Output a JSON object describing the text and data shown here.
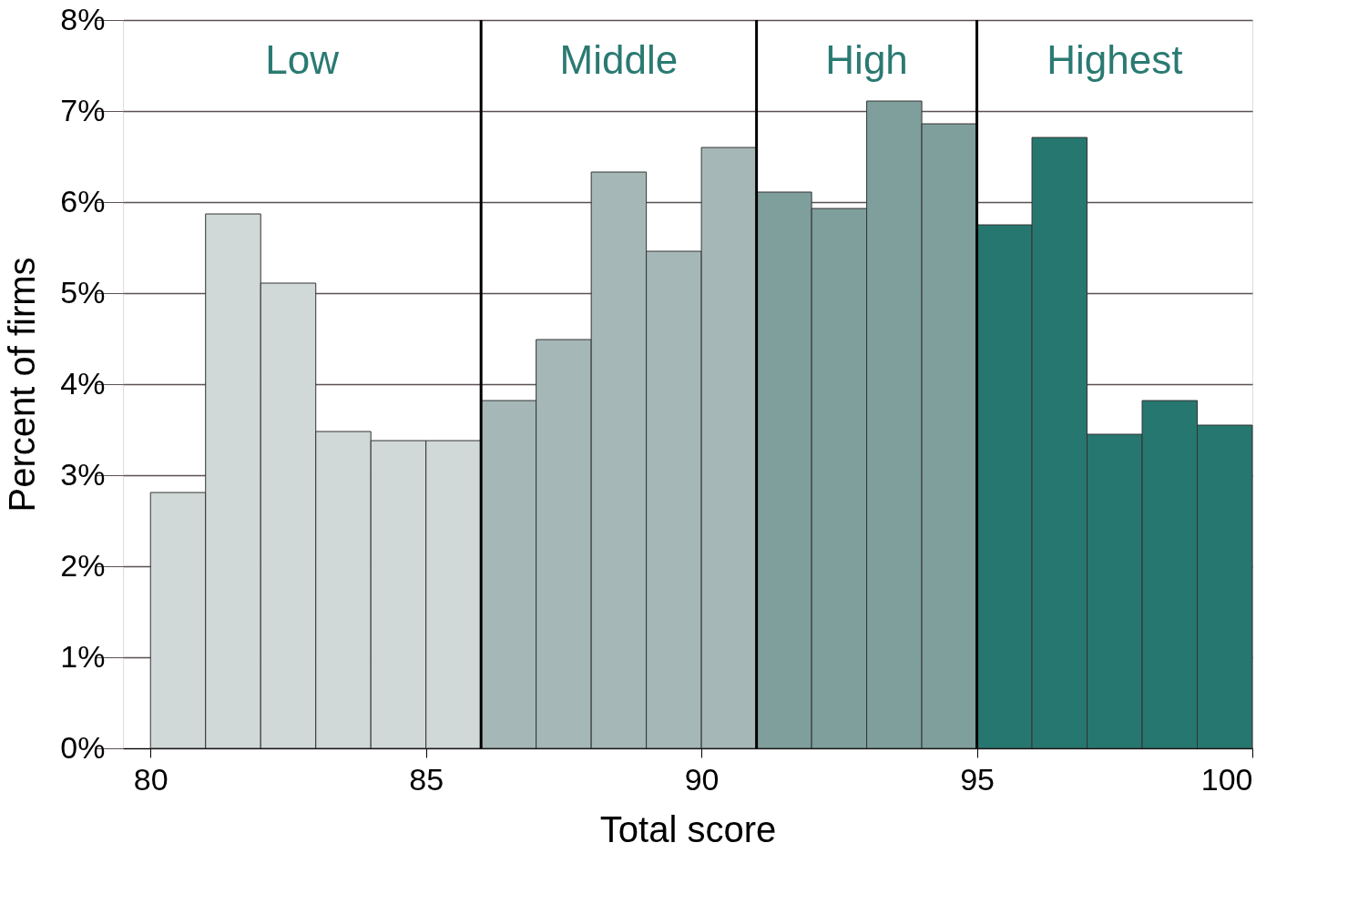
{
  "chart_data": {
    "type": "histogram",
    "xlabel": "Total score",
    "ylabel": "Percent of firms",
    "bins": [
      80,
      81,
      82,
      83,
      84,
      85,
      86,
      87,
      88,
      89,
      90,
      91,
      92,
      93,
      94,
      95,
      96,
      97,
      98,
      99,
      100
    ],
    "values": [
      2.81,
      5.87,
      5.11,
      3.48,
      3.38,
      3.38,
      3.82,
      4.49,
      6.33,
      5.46,
      6.6,
      6.11,
      5.93,
      7.11,
      6.86,
      5.75,
      6.71,
      3.45,
      3.82,
      3.55
    ],
    "colors": [
      "#d0d9d8",
      "#d0d9d8",
      "#d0d9d8",
      "#d0d9d8",
      "#d0d9d8",
      "#d0d9d8",
      "#a5b8b7",
      "#a5b8b7",
      "#a5b8b7",
      "#a5b8b7",
      "#a5b8b7",
      "#7f9f9c",
      "#7f9f9c",
      "#7f9f9c",
      "#7f9f9c",
      "#26776f",
      "#26776f",
      "#26776f",
      "#26776f",
      "#26776f"
    ],
    "xlim": [
      79.5,
      100
    ],
    "xticks": [
      80,
      85,
      90,
      95,
      100
    ],
    "ylim": [
      0,
      8
    ],
    "yticks": [
      {
        "value": 0,
        "label": "0%"
      },
      {
        "value": 1,
        "label": "1%"
      },
      {
        "value": 2,
        "label": "2%"
      },
      {
        "value": 3,
        "label": "3%"
      },
      {
        "value": 4,
        "label": "4%"
      },
      {
        "value": 5,
        "label": "5%"
      },
      {
        "value": 6,
        "label": "6%"
      },
      {
        "value": 7,
        "label": "7%"
      },
      {
        "value": 8,
        "label": "8%"
      }
    ],
    "grid": "y",
    "ref_lines": [
      {
        "axis": "x",
        "value": 86,
        "color": "#000000"
      },
      {
        "axis": "x",
        "value": 91,
        "color": "#000000"
      },
      {
        "axis": "x",
        "value": 95,
        "color": "#000000"
      }
    ],
    "annotations": [
      "Low",
      "Middle",
      "High",
      "Highest"
    ]
  }
}
